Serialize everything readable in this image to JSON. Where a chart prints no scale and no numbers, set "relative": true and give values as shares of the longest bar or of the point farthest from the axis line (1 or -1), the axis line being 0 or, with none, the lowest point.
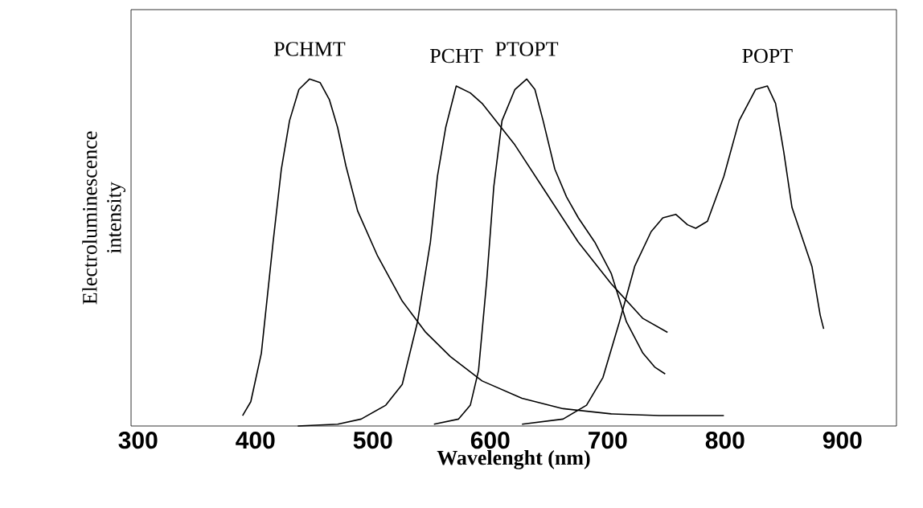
{
  "chart_data": {
    "type": "line",
    "relative": true,
    "tick_labels": "x",
    "xlabel": "Wavelenght (nm)",
    "ylabel": "Electroluminescence intensity",
    "xlim": [
      294,
      946
    ],
    "xticks": [
      300,
      400,
      500,
      600,
      700,
      800,
      900
    ],
    "series": [
      {
        "name": "PCHMT",
        "color": "#000000",
        "x": [
          389,
          396,
          405,
          415,
          422,
          429,
          437,
          446,
          455,
          463,
          470,
          477,
          487,
          504,
          525,
          545,
          566,
          593,
          627,
          662,
          703,
          744,
          799
        ],
        "values": [
          0.03,
          0.07,
          0.21,
          0.53,
          0.74,
          0.88,
          0.97,
          1.0,
          0.99,
          0.94,
          0.86,
          0.75,
          0.62,
          0.49,
          0.36,
          0.27,
          0.2,
          0.13,
          0.08,
          0.05,
          0.035,
          0.03,
          0.03
        ]
      },
      {
        "name": "PCHT",
        "color": "#000000",
        "x": [
          436,
          470,
          490,
          511,
          525,
          538,
          549,
          555,
          562,
          571,
          583,
          593,
          621,
          648,
          675,
          703,
          730,
          751
        ],
        "values": [
          0,
          0.005,
          0.02,
          0.06,
          0.12,
          0.3,
          0.53,
          0.72,
          0.86,
          0.98,
          0.96,
          0.93,
          0.81,
          0.67,
          0.53,
          0.41,
          0.31,
          0.27
        ]
      },
      {
        "name": "PTOPT",
        "color": "#000000",
        "x": [
          552,
          573,
          583,
          590,
          597,
          603,
          610,
          621,
          631,
          638,
          645,
          655,
          665,
          675,
          689,
          703,
          716,
          730,
          740,
          749
        ],
        "values": [
          0.005,
          0.02,
          0.06,
          0.16,
          0.42,
          0.69,
          0.88,
          0.97,
          1.0,
          0.97,
          0.88,
          0.74,
          0.66,
          0.6,
          0.53,
          0.44,
          0.3,
          0.21,
          0.17,
          0.15
        ]
      },
      {
        "name": "POPT",
        "color": "#000000",
        "x": [
          627,
          662,
          682,
          696,
          710,
          723,
          737,
          747,
          758,
          768,
          775,
          785,
          799,
          812,
          826,
          836,
          843,
          850,
          857,
          867,
          874,
          881,
          884
        ],
        "values": [
          0.005,
          0.02,
          0.06,
          0.14,
          0.3,
          0.46,
          0.56,
          0.6,
          0.61,
          0.58,
          0.57,
          0.59,
          0.72,
          0.88,
          0.97,
          0.98,
          0.93,
          0.79,
          0.63,
          0.53,
          0.46,
          0.32,
          0.28
        ]
      }
    ]
  }
}
